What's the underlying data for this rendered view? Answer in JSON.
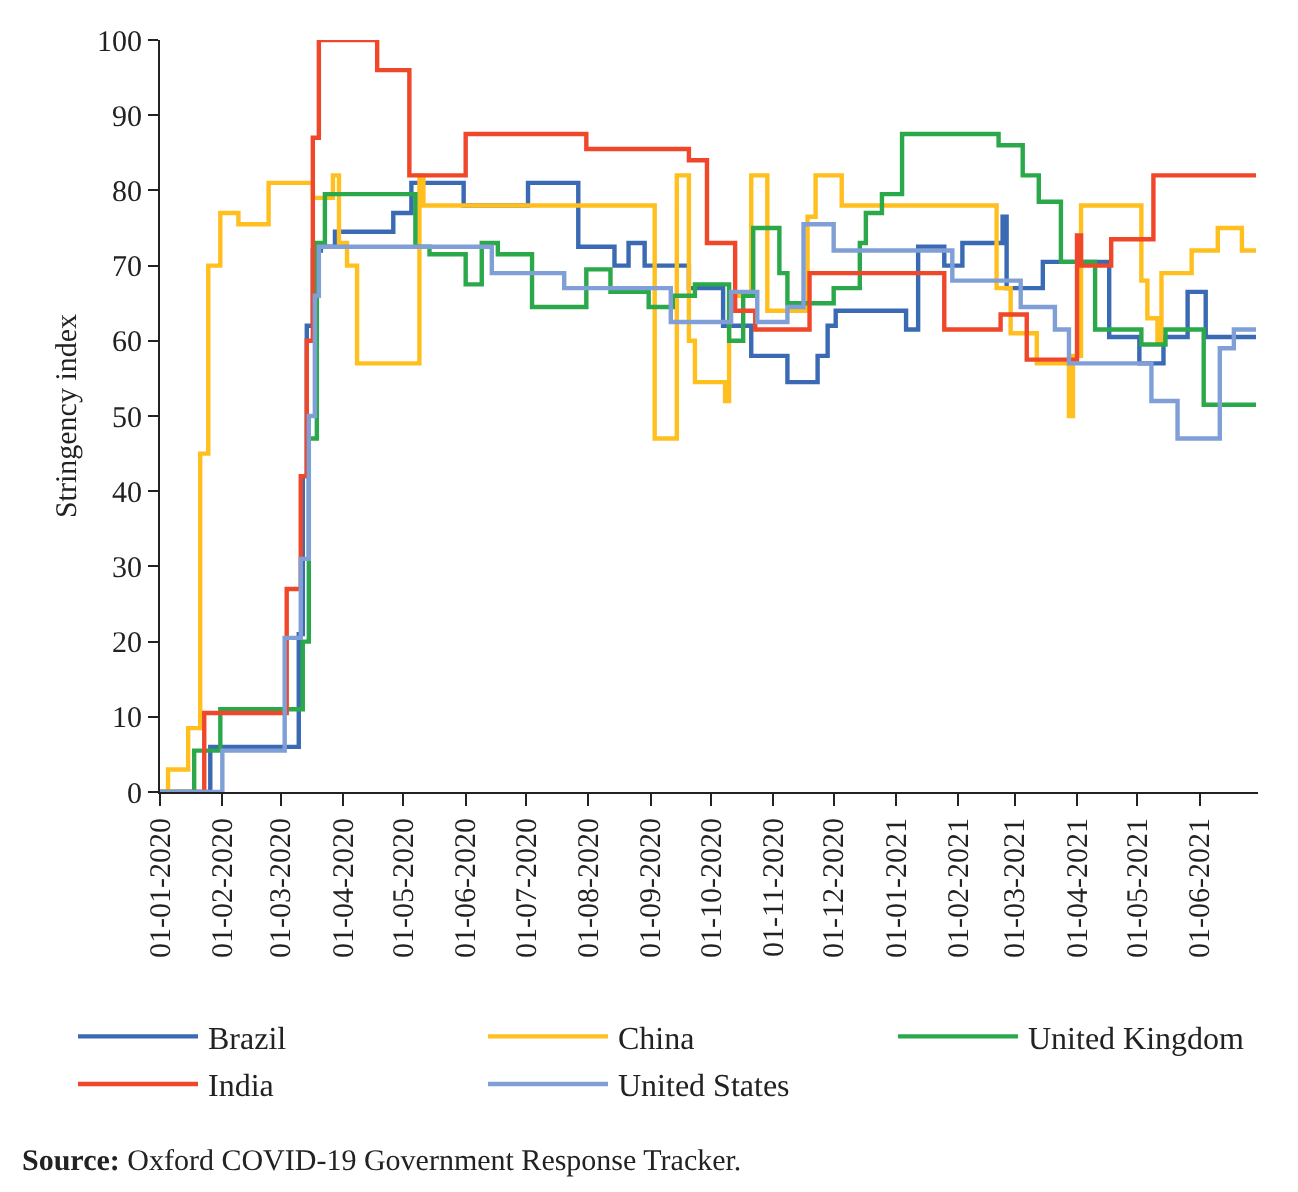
{
  "chart_data": {
    "type": "step",
    "ylabel": "Stringency index",
    "annotations": [
      "Source: Oxford COVID-19 Government Response Tracker."
    ],
    "xlim": [
      "2020-01-01",
      "2021-06-30"
    ],
    "xticks": [
      {
        "value": "2020-01-01",
        "label": "01-01-2020"
      },
      {
        "value": "2020-02-01",
        "label": "01-02-2020"
      },
      {
        "value": "2020-03-01",
        "label": "01-03-2020"
      },
      {
        "value": "2020-04-01",
        "label": "01-04-2020"
      },
      {
        "value": "2020-05-01",
        "label": "01-05-2020"
      },
      {
        "value": "2020-06-01",
        "label": "01-06-2020"
      },
      {
        "value": "2020-07-01",
        "label": "01-07-2020"
      },
      {
        "value": "2020-08-01",
        "label": "01-08-2020"
      },
      {
        "value": "2020-09-01",
        "label": "01-09-2020"
      },
      {
        "value": "2020-10-01",
        "label": "01-10-2020"
      },
      {
        "value": "2020-11-01",
        "label": "01-11-2020"
      },
      {
        "value": "2020-12-01",
        "label": "01-12-2020"
      },
      {
        "value": "2021-01-01",
        "label": "01-01-2021"
      },
      {
        "value": "2021-02-01",
        "label": "01-02-2021"
      },
      {
        "value": "2021-03-01",
        "label": "01-03-2021"
      },
      {
        "value": "2021-04-01",
        "label": "01-04-2021"
      },
      {
        "value": "2021-05-01",
        "label": "01-05-2021"
      },
      {
        "value": "2021-06-01",
        "label": "01-06-2021"
      }
    ],
    "ylim": [
      0,
      100
    ],
    "yticks": [
      0,
      10,
      20,
      30,
      40,
      50,
      60,
      70,
      80,
      90,
      100
    ],
    "legend": "bottom",
    "series": [
      {
        "name": "Brazil",
        "color": "#3a6ab4",
        "x": [
          "2020-01-01",
          "2020-01-26",
          "2020-03-10",
          "2020-03-12",
          "2020-03-14",
          "2020-03-17",
          "2020-03-21",
          "2020-03-28",
          "2020-04-26",
          "2020-05-05",
          "2020-05-31",
          "2020-07-02",
          "2020-07-27",
          "2020-08-14",
          "2020-08-21",
          "2020-08-29",
          "2020-09-20",
          "2020-10-07",
          "2020-10-21",
          "2020-11-08",
          "2020-11-23",
          "2020-11-28",
          "2020-12-02",
          "2020-12-13",
          "2021-01-06",
          "2021-01-12",
          "2021-01-25",
          "2021-02-03",
          "2021-02-23",
          "2021-02-25",
          "2021-03-01",
          "2021-03-15",
          "2021-04-17",
          "2021-05-02",
          "2021-05-14",
          "2021-05-26",
          "2021-06-04",
          "2021-06-29"
        ],
        "values": [
          0,
          6,
          21,
          42,
          62,
          72,
          72.5,
          74.5,
          77,
          81,
          78,
          81,
          72.5,
          70,
          73,
          70,
          67,
          62,
          58,
          54.5,
          58,
          62,
          64,
          64,
          61.5,
          72.5,
          70,
          73,
          76.5,
          67,
          67,
          70.5,
          60.5,
          57,
          60.5,
          66.5,
          60.5,
          60.5
        ]
      },
      {
        "name": "China",
        "color": "#ffbf1f",
        "x": [
          "2020-01-01",
          "2020-01-05",
          "2020-01-15",
          "2020-01-21",
          "2020-01-25",
          "2020-01-31",
          "2020-02-09",
          "2020-02-24",
          "2020-03-17",
          "2020-03-27",
          "2020-03-30",
          "2020-04-03",
          "2020-04-08",
          "2020-05-09",
          "2020-05-11",
          "2020-09-03",
          "2020-09-14",
          "2020-09-20",
          "2020-09-23",
          "2020-10-08",
          "2020-10-10",
          "2020-10-21",
          "2020-10-29",
          "2020-11-18",
          "2020-11-22",
          "2020-12-05",
          "2021-02-20",
          "2021-02-27",
          "2021-03-12",
          "2021-03-28",
          "2021-03-30",
          "2021-04-03",
          "2021-05-03",
          "2021-05-06",
          "2021-05-11",
          "2021-05-13",
          "2021-05-28",
          "2021-06-10",
          "2021-06-22",
          "2021-06-29"
        ],
        "values": [
          0,
          3,
          8.5,
          45,
          70,
          77,
          75.5,
          81,
          79,
          82,
          73,
          70,
          57,
          82,
          78,
          47,
          82,
          60,
          54.5,
          52,
          66,
          82,
          64,
          76.5,
          82,
          78,
          67,
          61,
          57,
          50,
          58,
          78,
          68,
          63,
          60,
          69,
          72,
          75,
          72,
          72
        ]
      },
      {
        "name": "United Kingdom",
        "color": "#2aa84a",
        "x": [
          "2020-01-01",
          "2020-01-18",
          "2020-01-31",
          "2020-03-12",
          "2020-03-15",
          "2020-03-19",
          "2020-03-23",
          "2020-05-07",
          "2020-05-14",
          "2020-06-01",
          "2020-06-09",
          "2020-06-17",
          "2020-07-04",
          "2020-07-31",
          "2020-08-12",
          "2020-08-31",
          "2020-09-12",
          "2020-09-23",
          "2020-10-10",
          "2020-10-17",
          "2020-10-22",
          "2020-11-04",
          "2020-11-08",
          "2020-12-01",
          "2020-12-14",
          "2020-12-17",
          "2020-12-25",
          "2021-01-04",
          "2021-02-21",
          "2021-03-05",
          "2021-03-13",
          "2021-03-24",
          "2021-04-10",
          "2021-05-03",
          "2021-05-15",
          "2021-06-03",
          "2021-06-29"
        ],
        "values": [
          0,
          5.5,
          11,
          20,
          47,
          73,
          79.5,
          72.5,
          71.5,
          67.5,
          73,
          71.5,
          64.5,
          69.5,
          66.5,
          64.5,
          66,
          67.5,
          60,
          66,
          75,
          69,
          65,
          67,
          73,
          77,
          79.5,
          87.5,
          86,
          82,
          78.5,
          70.5,
          61.5,
          59.5,
          61.5,
          51.5,
          51.5
        ]
      },
      {
        "name": "India",
        "color": "#f0472a",
        "x": [
          "2020-01-01",
          "2020-01-23",
          "2020-03-04",
          "2020-03-11",
          "2020-03-14",
          "2020-03-17",
          "2020-03-20",
          "2020-04-18",
          "2020-05-04",
          "2020-06-01",
          "2020-07-31",
          "2020-09-20",
          "2020-09-29",
          "2020-10-13",
          "2020-10-23",
          "2020-11-19",
          "2021-01-25",
          "2021-02-22",
          "2021-03-07",
          "2021-04-01",
          "2021-04-03",
          "2021-04-18",
          "2021-05-09",
          "2021-06-29"
        ],
        "values": [
          0,
          10.5,
          27,
          42,
          60,
          87,
          100,
          96,
          82,
          87.5,
          85.5,
          84,
          73,
          64,
          61.5,
          69,
          61.5,
          63.5,
          57.5,
          74,
          70,
          73.5,
          82,
          82
        ]
      },
      {
        "name": "United States",
        "color": "#7f9fd6",
        "x": [
          "2020-01-01",
          "2020-02-01",
          "2020-03-03",
          "2020-03-11",
          "2020-03-15",
          "2020-03-18",
          "2020-03-20",
          "2020-06-14",
          "2020-07-20",
          "2020-09-11",
          "2020-10-11",
          "2020-10-24",
          "2020-11-08",
          "2020-11-16",
          "2020-12-01",
          "2021-01-29",
          "2021-03-04",
          "2021-03-21",
          "2021-03-28",
          "2021-05-08",
          "2021-05-21",
          "2021-06-11",
          "2021-06-18",
          "2021-06-29"
        ],
        "values": [
          0,
          5.5,
          20.5,
          31,
          50,
          66,
          72.5,
          69,
          67,
          62.5,
          66.5,
          62.5,
          64.5,
          75.5,
          72,
          68,
          64.5,
          61.5,
          57,
          52,
          47,
          59,
          61.5,
          61.5
        ]
      }
    ]
  }
}
